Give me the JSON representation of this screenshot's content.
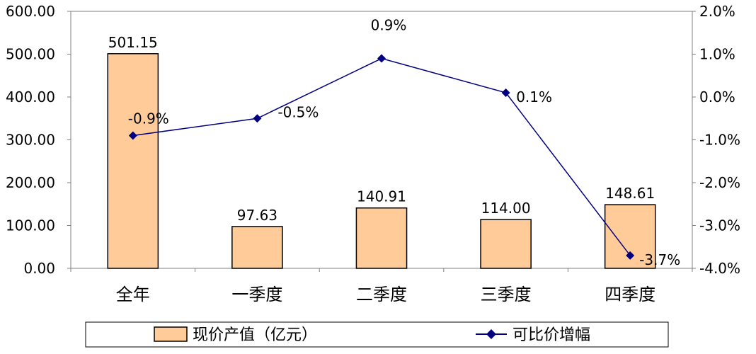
{
  "chart_data": {
    "type": "bar",
    "categories": [
      "全年",
      "一季度",
      "二季度",
      "三季度",
      "四季度"
    ],
    "series": [
      {
        "name": "现价产值（亿元）",
        "type": "bar",
        "axis": "left",
        "values": [
          501.15,
          97.63,
          140.91,
          114.0,
          148.61
        ],
        "labels": [
          "501.15",
          "97.63",
          "140.91",
          "114.00",
          "148.61"
        ],
        "color": "#FFCC99",
        "border": "#000000"
      },
      {
        "name": "可比价增幅",
        "type": "line",
        "axis": "right",
        "values": [
          -0.9,
          -0.5,
          0.9,
          0.1,
          -3.7
        ],
        "labels": [
          "-0.9%",
          "-0.5%",
          "0.9%",
          "0.1%",
          "-3.7%"
        ],
        "color": "#000080",
        "marker": "diamond"
      }
    ],
    "left_axis": {
      "ylim": [
        0,
        600
      ],
      "ticks": [
        "0.00",
        "100.00",
        "200.00",
        "300.00",
        "400.00",
        "500.00",
        "600.00"
      ]
    },
    "right_axis": {
      "ylim": [
        -4.0,
        2.0
      ],
      "ticks": [
        "-4.0%",
        "-3.0%",
        "-2.0%",
        "-1.0%",
        "0.0%",
        "1.0%",
        "2.0%"
      ]
    },
    "grid": false,
    "legend": "bottom"
  }
}
